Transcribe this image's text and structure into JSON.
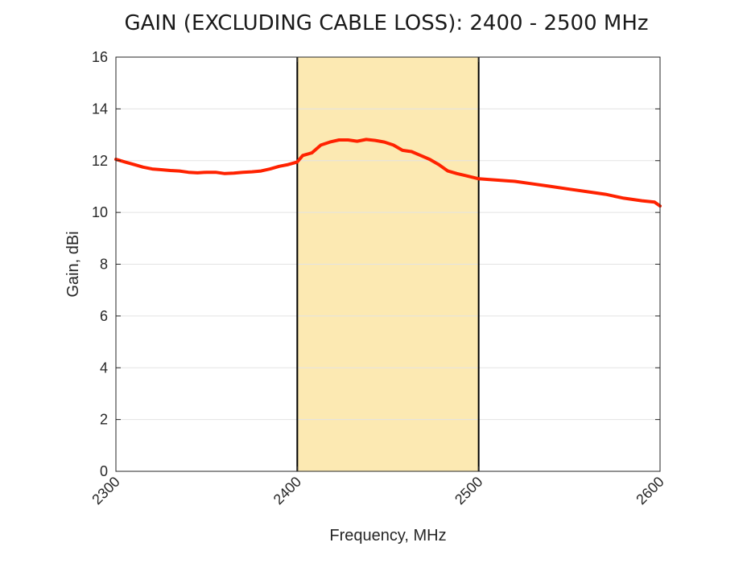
{
  "chart_data": {
    "type": "line",
    "title": "GAIN (EXCLUDING CABLE LOSS): 2400 - 2500 MHz",
    "xlabel": "Frequency, MHz",
    "ylabel": "Gain, dBi",
    "xlim": [
      2300,
      2600
    ],
    "ylim": [
      0,
      16
    ],
    "xticks": [
      "2300",
      "2400",
      "2500",
      "2600"
    ],
    "yticks": [
      "0",
      "2",
      "4",
      "6",
      "8",
      "10",
      "12",
      "14",
      "16"
    ],
    "grid": "horizontal",
    "band": {
      "start": 2400,
      "end": 2500,
      "color": "#fce9b2"
    },
    "series": [
      {
        "color": "#ff2200",
        "x": [
          2300,
          2305,
          2310,
          2315,
          2320,
          2325,
          2330,
          2335,
          2340,
          2345,
          2350,
          2355,
          2360,
          2365,
          2370,
          2375,
          2380,
          2385,
          2390,
          2395,
          2400,
          2403,
          2408,
          2413,
          2418,
          2423,
          2428,
          2433,
          2438,
          2443,
          2448,
          2453,
          2458,
          2463,
          2468,
          2473,
          2478,
          2483,
          2488,
          2493,
          2500,
          2510,
          2520,
          2530,
          2540,
          2550,
          2560,
          2570,
          2580,
          2590,
          2597,
          2600
        ],
        "y": [
          12.05,
          11.95,
          11.85,
          11.75,
          11.68,
          11.65,
          11.62,
          11.6,
          11.55,
          11.53,
          11.55,
          11.55,
          11.5,
          11.52,
          11.55,
          11.57,
          11.6,
          11.68,
          11.78,
          11.85,
          11.95,
          12.2,
          12.3,
          12.6,
          12.72,
          12.8,
          12.8,
          12.75,
          12.82,
          12.78,
          12.72,
          12.6,
          12.4,
          12.35,
          12.2,
          12.05,
          11.85,
          11.6,
          11.5,
          11.42,
          11.3,
          11.25,
          11.2,
          11.1,
          11.0,
          10.9,
          10.8,
          10.7,
          10.55,
          10.45,
          10.4,
          10.25
        ]
      }
    ]
  }
}
